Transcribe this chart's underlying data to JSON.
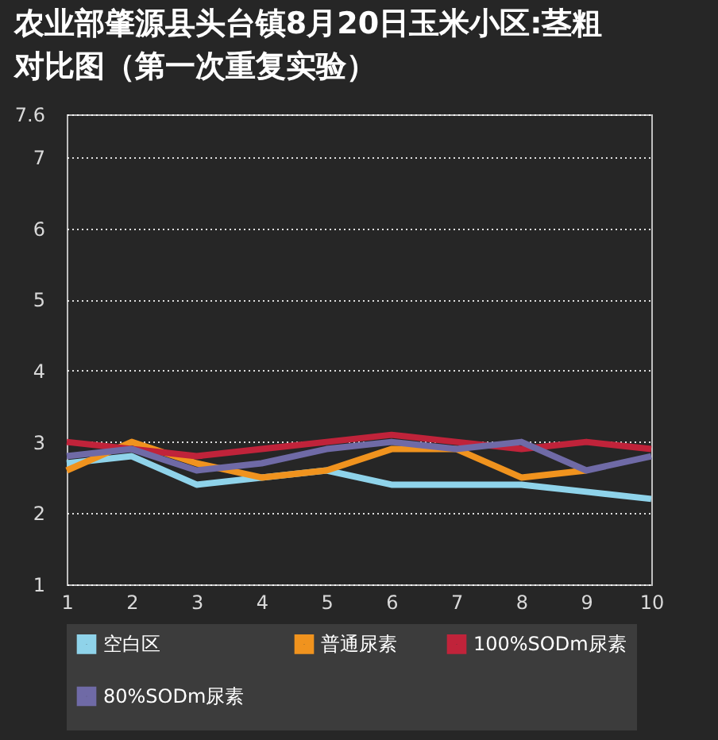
{
  "chart_data": {
    "type": "line",
    "title": "农业部肇源县头台镇8月20日玉米小区:茎粗对比图（第一次重复实验）",
    "x": [
      1,
      2,
      3,
      4,
      5,
      6,
      7,
      8,
      9,
      10
    ],
    "xlim": [
      1,
      10
    ],
    "xticks": [
      1,
      2,
      3,
      4,
      5,
      6,
      7,
      8,
      9,
      10
    ],
    "ylim": [
      1,
      7.6
    ],
    "yticks": [
      1,
      2,
      3,
      4,
      5,
      6,
      7,
      7.6
    ],
    "grid": "y",
    "legend": "bottom",
    "marker": "none",
    "line_style": "solid",
    "series": [
      {
        "name": "空白区",
        "color": "#8fd3ea",
        "values": [
          2.7,
          2.8,
          2.4,
          2.5,
          2.6,
          2.4,
          2.4,
          2.4,
          2.3,
          2.2
        ]
      },
      {
        "name": "普通尿素",
        "color": "#f0931e",
        "values": [
          2.6,
          3.0,
          2.7,
          2.5,
          2.6,
          2.9,
          2.9,
          2.5,
          2.6,
          null
        ]
      },
      {
        "name": "100%SODm尿素",
        "color": "#c0233a",
        "values": [
          3.0,
          2.9,
          2.8,
          2.9,
          3.0,
          3.1,
          3.0,
          2.9,
          3.0,
          2.9
        ]
      },
      {
        "name": "80%SODm尿素",
        "color": "#6f6aa6",
        "values": [
          2.8,
          2.9,
          2.6,
          2.7,
          2.9,
          3.0,
          2.9,
          3.0,
          2.6,
          2.8
        ]
      }
    ]
  }
}
